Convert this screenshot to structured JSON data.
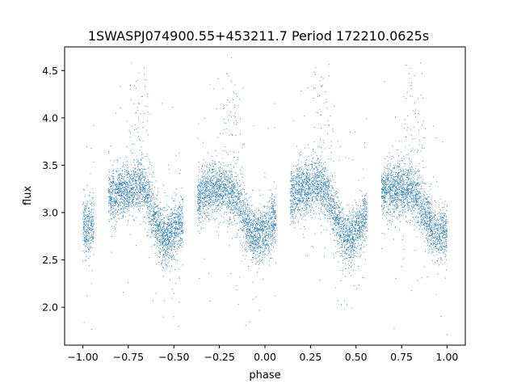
{
  "chart_data": {
    "type": "scatter",
    "title": "1SWASPJ074900.55+453211.7 Period 172210.0625s",
    "xlabel": "phase",
    "ylabel": "flux",
    "xlim": [
      -1.1,
      1.1
    ],
    "ylim": [
      1.6,
      4.75
    ],
    "x_ticks": [
      -1.0,
      -0.75,
      -0.5,
      -0.25,
      0.0,
      0.25,
      0.5,
      0.75,
      1.0
    ],
    "x_tick_labels": [
      "−1.00",
      "−0.75",
      "−0.50",
      "−0.25",
      "0.00",
      "0.25",
      "0.50",
      "0.75",
      "1.00"
    ],
    "y_ticks": [
      2.0,
      2.5,
      3.0,
      3.5,
      4.0,
      4.5
    ],
    "y_tick_labels": [
      "2.0",
      "2.5",
      "3.0",
      "3.5",
      "4.0",
      "4.5"
    ],
    "grid": false,
    "legend": "none",
    "marker_color": "#1f77b4",
    "phase_coverage": [
      [
        -1.0,
        -0.94
      ],
      [
        -0.86,
        -0.45
      ],
      [
        -0.37,
        0.06
      ],
      [
        0.14,
        0.56
      ],
      [
        0.64,
        1.0
      ]
    ],
    "series": [
      {
        "description_points": "phase-folded light curve sampled at representative positions (phase, flux)",
        "x": [
          -0.98,
          -0.96,
          -0.84,
          -0.8,
          -0.75,
          -0.72,
          -0.68,
          -0.65,
          -0.62,
          -0.58,
          -0.55,
          -0.52,
          -0.48,
          -0.34,
          -0.3,
          -0.25,
          -0.2,
          -0.16,
          -0.12,
          -0.08,
          -0.05,
          -0.02,
          0.02,
          0.16,
          0.2,
          0.25,
          0.3,
          0.34,
          0.38,
          0.42,
          0.45,
          0.48,
          0.52,
          0.66,
          0.7,
          0.75,
          0.8,
          0.84,
          0.88,
          0.92,
          0.95,
          0.98
        ],
        "y": [
          2.85,
          2.82,
          3.2,
          3.22,
          3.25,
          3.28,
          3.3,
          3.22,
          3.0,
          2.8,
          2.72,
          2.75,
          2.85,
          3.22,
          3.25,
          3.25,
          3.22,
          3.15,
          3.0,
          2.82,
          2.75,
          2.78,
          2.85,
          3.22,
          3.25,
          3.28,
          3.3,
          3.22,
          3.0,
          2.8,
          2.72,
          2.75,
          2.85,
          3.22,
          3.25,
          3.25,
          3.22,
          3.15,
          3.0,
          2.82,
          2.75,
          2.8
        ]
      }
    ]
  }
}
